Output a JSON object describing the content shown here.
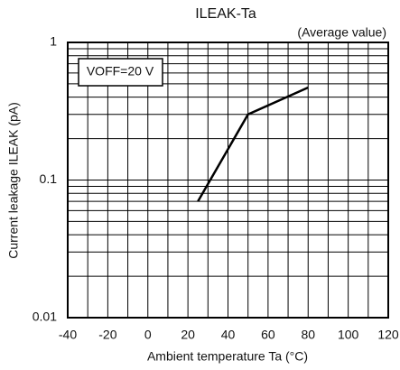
{
  "chart_data": {
    "type": "line",
    "title": "ILEAK-Ta",
    "subtitle": "(Average value)",
    "annotation": "VOFF=20 V",
    "x_label": "Ambient temperature Ta (°C)",
    "y_label": "Current leakage ILEAK (pA)",
    "x": [
      25,
      50,
      80
    ],
    "series": [
      {
        "color": "#000000",
        "values": [
          0.07,
          0.3,
          0.47
        ]
      }
    ],
    "xlim": [
      -40,
      120
    ],
    "xticks": [
      -40,
      -20,
      0,
      20,
      40,
      60,
      80,
      100,
      120
    ],
    "xminor": [
      -30,
      -10,
      10,
      30,
      50,
      70,
      90,
      110
    ],
    "ylim": [
      0.01,
      1
    ],
    "yticks": [
      0.01,
      0.1,
      1
    ],
    "yminor": [
      0.02,
      0.03,
      0.04,
      0.05,
      0.06,
      0.07,
      0.08,
      0.09,
      0.2,
      0.3,
      0.4,
      0.5,
      0.6,
      0.7,
      0.8,
      0.9
    ],
    "ylog": true,
    "grid": true
  }
}
